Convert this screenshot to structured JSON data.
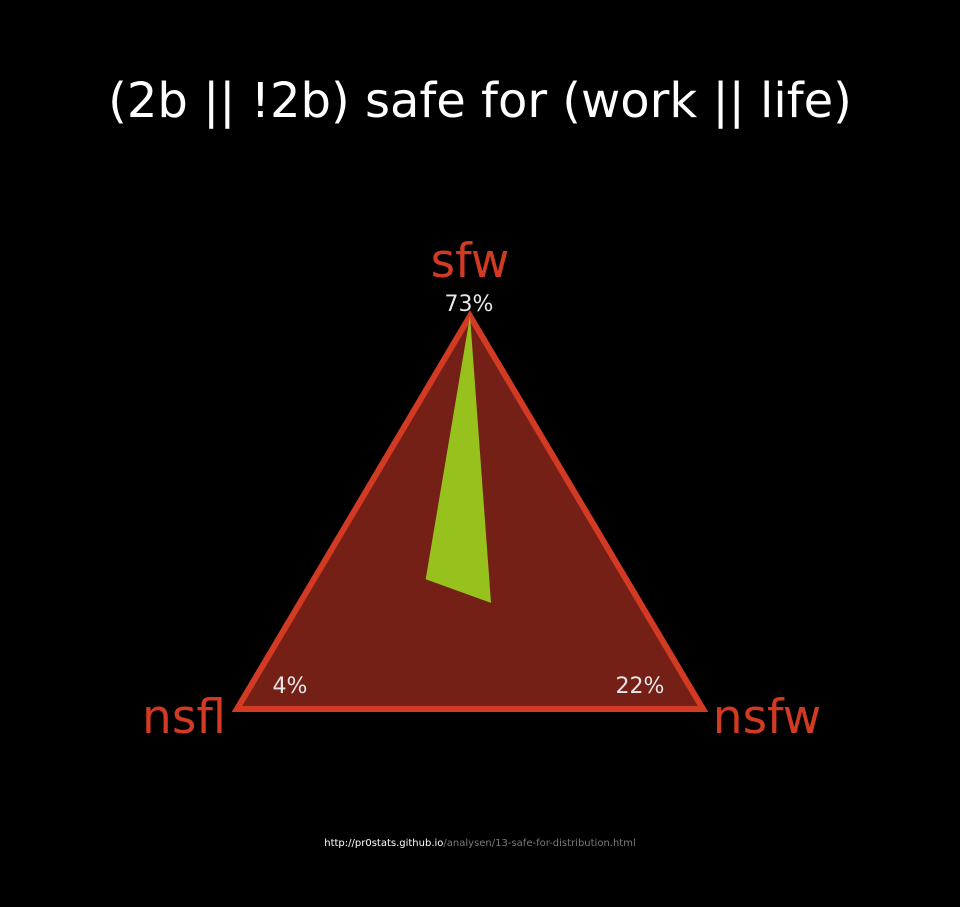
{
  "page": {
    "title": "(2b || !2b) safe for (work || life)",
    "footer": {
      "host": "http://pr0stats.github.io",
      "path": "/analysen/13-safe-for-distribution.html"
    }
  },
  "colors": {
    "background": "#000000",
    "triangle_stroke": "#d23a23",
    "triangle_fill": "#742017",
    "area_fill": "#97c21e",
    "vertex_label": "#d23a23",
    "percent_label": "#e6e6e6"
  },
  "chart_data": {
    "type": "ternary",
    "title": "(2b || !2b) safe for (work || life)",
    "vertices": [
      {
        "key": "sfw",
        "label": "sfw",
        "position": "top",
        "value_label": "73%",
        "value": 73
      },
      {
        "key": "nsfl",
        "label": "nsfl",
        "position": "bottom-left",
        "value_label": "4%",
        "value": 4
      },
      {
        "key": "nsfw",
        "label": "nsfw",
        "position": "bottom-right",
        "value_label": "22%",
        "value": 22
      }
    ],
    "region": {
      "description": "green distribution area",
      "points": [
        {
          "sfw": 1.0,
          "nsfl": 0.0,
          "nsfw": 0.0
        },
        {
          "sfw": 0.33,
          "nsfl": 0.43,
          "nsfw": 0.24
        },
        {
          "sfw": 0.27,
          "nsfl": 0.32,
          "nsfw": 0.41
        }
      ]
    }
  }
}
